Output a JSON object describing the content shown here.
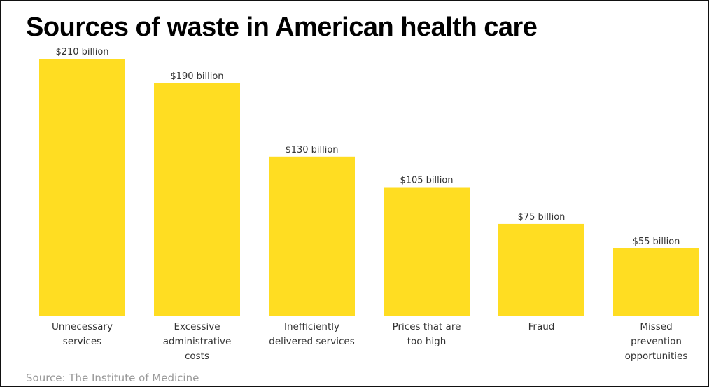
{
  "chart_data": {
    "type": "bar",
    "title": "Sources of waste in American health care",
    "source": "Source: The Institute of Medicine",
    "categories": [
      [
        "Unnecessary",
        "services"
      ],
      [
        "Excessive",
        "administrative",
        "costs"
      ],
      [
        "Inefficiently",
        "delivered services"
      ],
      [
        "Prices that are",
        "too high"
      ],
      [
        "Fraud"
      ],
      [
        "Missed",
        "prevention",
        "opportunities"
      ]
    ],
    "values": [
      210,
      190,
      130,
      105,
      75,
      55
    ],
    "value_labels": [
      "$210 billion",
      "$190 billion",
      "$130 billion",
      "$105 billion",
      "$75 billion",
      "$55 billion"
    ],
    "unit": "billion USD",
    "ylim": [
      0,
      210
    ],
    "grid": false,
    "bar_color": "#FFDD22"
  }
}
